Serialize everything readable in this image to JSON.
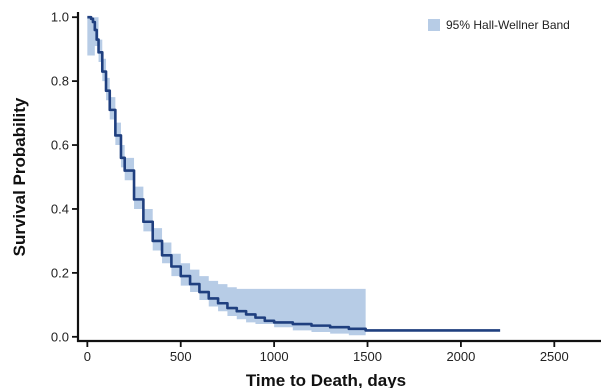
{
  "colors": {
    "curve": "#1f3f7f",
    "band": "#b7cce6",
    "axis": "#111111"
  },
  "chart_data": {
    "type": "line",
    "title": "",
    "xlabel": "Time to Death, days",
    "ylabel": "Survival Probability",
    "xlim": [
      -50,
      2750
    ],
    "ylim": [
      -0.01,
      1.01
    ],
    "x_ticks": [
      0,
      500,
      1000,
      1500,
      2000,
      2500
    ],
    "y_ticks": [
      0.0,
      0.2,
      0.4,
      0.6,
      0.8,
      1.0
    ],
    "x_tick_labels": [
      "0",
      "500",
      "1000",
      "1500",
      "2000",
      "2500"
    ],
    "y_tick_labels": [
      "0.0",
      "0.2",
      "0.4",
      "0.6",
      "0.8",
      "1.0"
    ],
    "grid": false,
    "legend_position": "top-right",
    "series": [
      {
        "type": "step",
        "x": [
          0,
          20,
          30,
          40,
          50,
          60,
          80,
          100,
          120,
          150,
          180,
          200,
          250,
          300,
          350,
          400,
          450,
          500,
          550,
          600,
          650,
          700,
          750,
          800,
          850,
          900,
          950,
          1000,
          1100,
          1200,
          1300,
          1400,
          1490,
          1600,
          1800,
          2000,
          2210
        ],
        "y": [
          1.0,
          0.995,
          0.985,
          0.96,
          0.93,
          0.89,
          0.83,
          0.77,
          0.71,
          0.63,
          0.56,
          0.52,
          0.43,
          0.36,
          0.3,
          0.255,
          0.22,
          0.19,
          0.165,
          0.14,
          0.12,
          0.105,
          0.09,
          0.08,
          0.07,
          0.06,
          0.05,
          0.045,
          0.04,
          0.035,
          0.03,
          0.025,
          0.02,
          0.02,
          0.02,
          0.02,
          0.02
        ]
      },
      {
        "type": "band",
        "name": "95% Hall-Wellner Band",
        "x": [
          0,
          20,
          40,
          60,
          80,
          100,
          120,
          150,
          180,
          200,
          250,
          300,
          350,
          400,
          450,
          500,
          550,
          600,
          650,
          700,
          750,
          800,
          850,
          900,
          1000,
          1100,
          1200,
          1300,
          1400,
          1490
        ],
        "lower": [
          0.88,
          0.88,
          0.91,
          0.86,
          0.8,
          0.74,
          0.68,
          0.6,
          0.53,
          0.49,
          0.4,
          0.33,
          0.27,
          0.23,
          0.19,
          0.16,
          0.14,
          0.115,
          0.095,
          0.08,
          0.065,
          0.055,
          0.045,
          0.04,
          0.03,
          0.02,
          0.015,
          0.01,
          0.005,
          0.0
        ],
        "upper": [
          1.0,
          1.0,
          1.0,
          0.93,
          0.87,
          0.81,
          0.75,
          0.67,
          0.6,
          0.56,
          0.47,
          0.4,
          0.34,
          0.295,
          0.26,
          0.23,
          0.21,
          0.19,
          0.175,
          0.165,
          0.155,
          0.15,
          0.15,
          0.15,
          0.15,
          0.15,
          0.15,
          0.15,
          0.15,
          0.15
        ]
      }
    ]
  }
}
